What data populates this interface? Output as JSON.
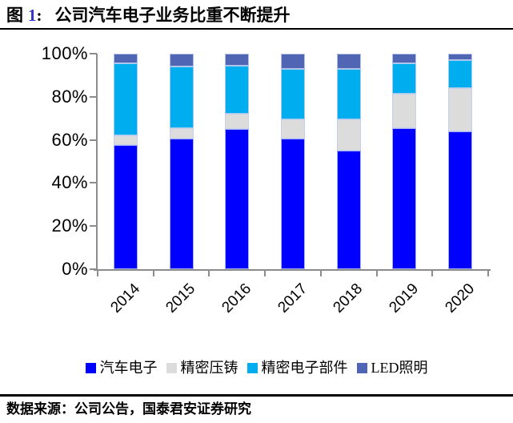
{
  "header": {
    "figure_prefix": "图",
    "figure_no": "1",
    "separator": ":",
    "title": "公司汽车电子业务比重不断提升"
  },
  "footer": {
    "source": "数据来源：公司公告，国泰君安证券研究"
  },
  "colors": {
    "axis": "#8c8c8c",
    "figure_no_accent": "#3333cc",
    "rule": "#000000"
  },
  "chart_data": {
    "type": "bar",
    "stacked": true,
    "percent_stacked": true,
    "grid": false,
    "legend_position": "bottom",
    "categories": [
      "2014",
      "2015",
      "2016",
      "2017",
      "2018",
      "2019",
      "2020"
    ],
    "series": [
      {
        "name": "汽车电子",
        "color": "#0000fe",
        "values": [
          57.5,
          60.5,
          65.0,
          60.5,
          55.0,
          65.5,
          64.0
        ]
      },
      {
        "name": "精密压铸",
        "color": "#dcdcdc",
        "values": [
          4.5,
          5.0,
          7.0,
          9.0,
          14.5,
          16.0,
          20.0
        ]
      },
      {
        "name": "精密电子部件",
        "color": "#00aeef",
        "values": [
          33.5,
          28.5,
          22.5,
          23.5,
          23.5,
          14.0,
          13.0
        ]
      },
      {
        "name": "LED照明",
        "color": "#5066b4",
        "values": [
          4.5,
          6.0,
          5.5,
          7.0,
          7.0,
          4.5,
          3.0
        ]
      }
    ],
    "ylim": [
      0,
      100
    ],
    "yticks": [
      0,
      20,
      40,
      60,
      80,
      100
    ],
    "ytick_labels": [
      "0%",
      "20%",
      "40%",
      "60%",
      "80%",
      "100%"
    ],
    "xlabel": "",
    "ylabel": ""
  }
}
